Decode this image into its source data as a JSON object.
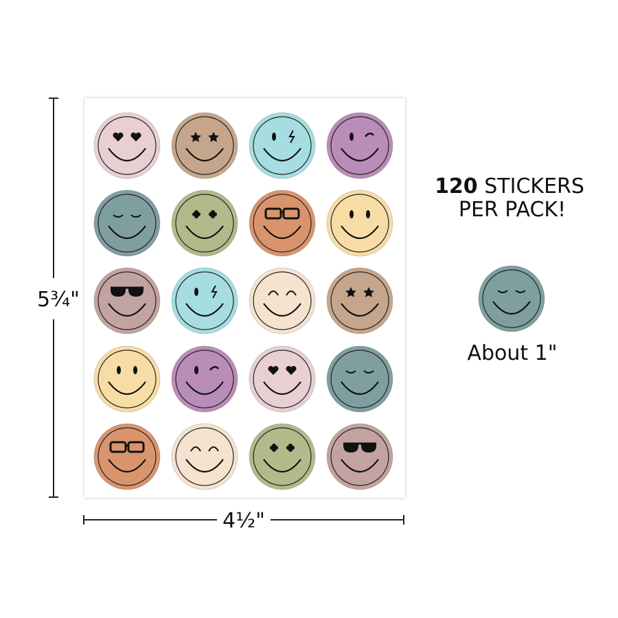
{
  "height_label": "5¾\"",
  "width_label": "4½\"",
  "pack": {
    "count": "120",
    "text": "STICKERS",
    "line2": "PER PACK!"
  },
  "size_label": "About 1\""
}
